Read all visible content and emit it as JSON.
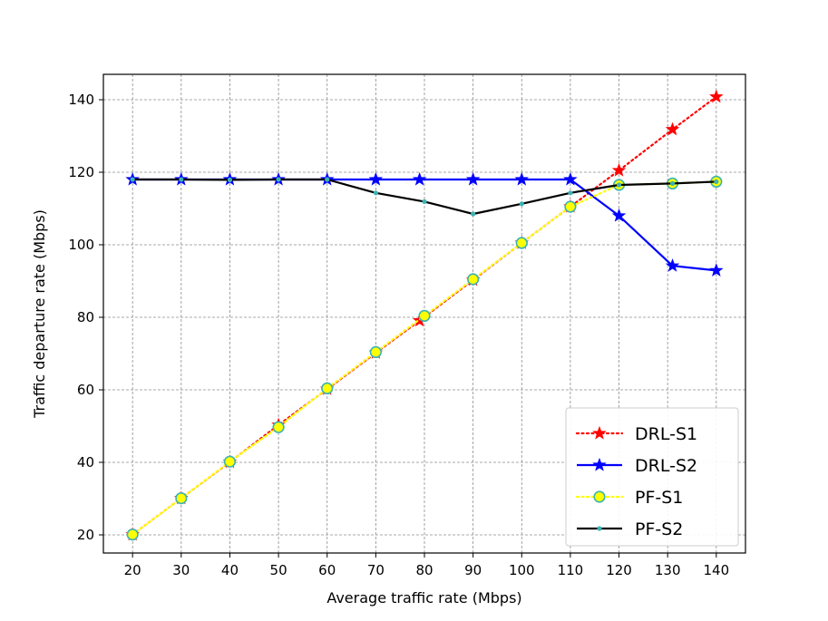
{
  "chart_data": {
    "type": "line",
    "xlabel": "Average traffic rate (Mbps)",
    "ylabel": "Traffic departure rate (Mbps)",
    "xlim": [
      14,
      146
    ],
    "ylim": [
      15,
      147
    ],
    "xticks": [
      20,
      30,
      40,
      50,
      60,
      70,
      80,
      90,
      100,
      110,
      120,
      130,
      140
    ],
    "yticks": [
      20,
      40,
      60,
      80,
      100,
      120,
      140
    ],
    "grid": true,
    "legend_position": "lower-right",
    "series": [
      {
        "name": "DRL-S1",
        "color": "#ff0000",
        "line_style": "dotted",
        "marker": "star",
        "marker_fill": "#ff0000",
        "marker_edge": "#ff0000",
        "x": [
          20,
          30,
          40,
          50,
          60,
          70,
          79,
          90,
          100,
          110,
          120,
          131,
          140
        ],
        "y": [
          20.1,
          30.1,
          40.1,
          50.3,
          60.2,
          70.2,
          79.1,
          90.3,
          100.5,
          110.5,
          120.5,
          131.8,
          140.8
        ]
      },
      {
        "name": "DRL-S2",
        "color": "#0000ff",
        "line_style": "solid",
        "marker": "star",
        "marker_fill": "#0000ff",
        "marker_edge": "#0000ff",
        "x": [
          20,
          30,
          40,
          50,
          60,
          70,
          79,
          90,
          100,
          110,
          120,
          131,
          140
        ],
        "y": [
          118,
          118,
          118,
          118,
          118,
          118,
          118,
          118,
          118,
          118,
          108,
          94.2,
          92.9
        ]
      },
      {
        "name": "PF-S1",
        "color": "#ffff00",
        "line_style": "dotted",
        "marker": "circle",
        "marker_fill": "#ffff00",
        "marker_edge": "#3cb3b3",
        "x": [
          20,
          30,
          40,
          50,
          60,
          70,
          80,
          90,
          100,
          110,
          120,
          131,
          140
        ],
        "y": [
          20.1,
          30.1,
          40.2,
          49.7,
          60.4,
          70.4,
          80.4,
          90.5,
          100.5,
          110.5,
          116.5,
          116.9,
          117.4
        ]
      },
      {
        "name": "PF-S2",
        "color": "#000000",
        "line_style": "solid",
        "marker": "small-circle",
        "marker_fill": "#3cb3b3",
        "marker_edge": "#3cb3b3",
        "x": [
          20,
          30,
          40,
          50,
          60,
          70,
          80,
          90,
          100,
          110,
          120,
          131,
          140
        ],
        "y": [
          118,
          118,
          117.9,
          118,
          118,
          114.3,
          111.9,
          108.5,
          111.3,
          114.3,
          116.5,
          116.9,
          117.4
        ]
      }
    ]
  }
}
